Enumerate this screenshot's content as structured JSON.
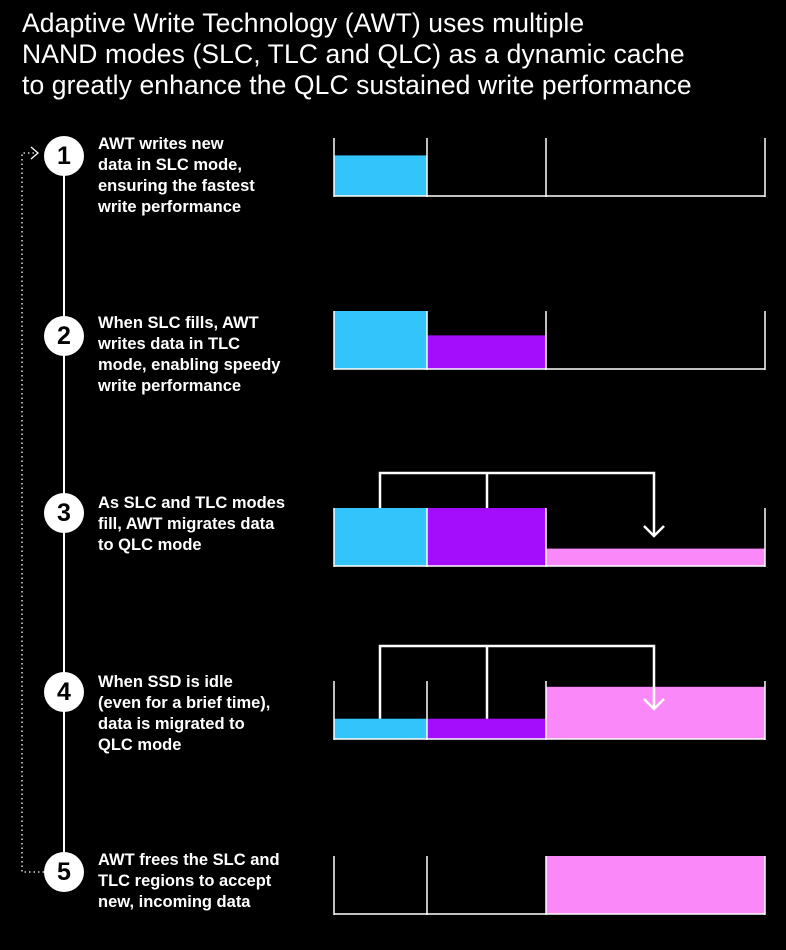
{
  "title": {
    "line1": "Adaptive Write Technology (AWT) uses multiple",
    "line2": "NAND modes (SLC, TLC and QLC) as a dynamic cache",
    "line3": "to greatly enhance the QLC sustained write performance"
  },
  "colors": {
    "background": "#000000",
    "slc": "#33c4fb",
    "tlc": "#a30dfc",
    "qlc": "#fb88f8",
    "line": "#ffffff"
  },
  "steps": [
    {
      "number": "1",
      "lines": [
        "AWT writes new",
        "data in SLC mode,",
        "ensuring the fastest",
        "write performance"
      ],
      "fill": {
        "slc": 0.7,
        "tlc": 0,
        "qlc": 0
      },
      "migration_arrow": false
    },
    {
      "number": "2",
      "lines": [
        "When SLC fills, AWT",
        "writes data in TLC",
        "mode, enabling speedy",
        "write performance"
      ],
      "fill": {
        "slc": 1.0,
        "tlc": 0.58,
        "qlc": 0
      },
      "migration_arrow": false
    },
    {
      "number": "3",
      "lines": [
        "As SLC and TLC modes",
        "fill, AWT migrates data",
        "to QLC mode"
      ],
      "fill": {
        "slc": 1.0,
        "tlc": 1.0,
        "qlc": 0.3
      },
      "migration_arrow": true
    },
    {
      "number": "4",
      "lines": [
        "When SSD is idle",
        "(even for a brief time),",
        "data is migrated to",
        "QLC mode"
      ],
      "fill": {
        "slc": 0.35,
        "tlc": 0.35,
        "qlc": 0.9
      },
      "migration_arrow": true
    },
    {
      "number": "5",
      "lines": [
        "AWT frees the SLC and",
        "TLC regions to accept",
        "new, incoming data"
      ],
      "fill": {
        "slc": 0,
        "tlc": 0,
        "qlc": 1.0
      },
      "migration_arrow": false
    }
  ]
}
